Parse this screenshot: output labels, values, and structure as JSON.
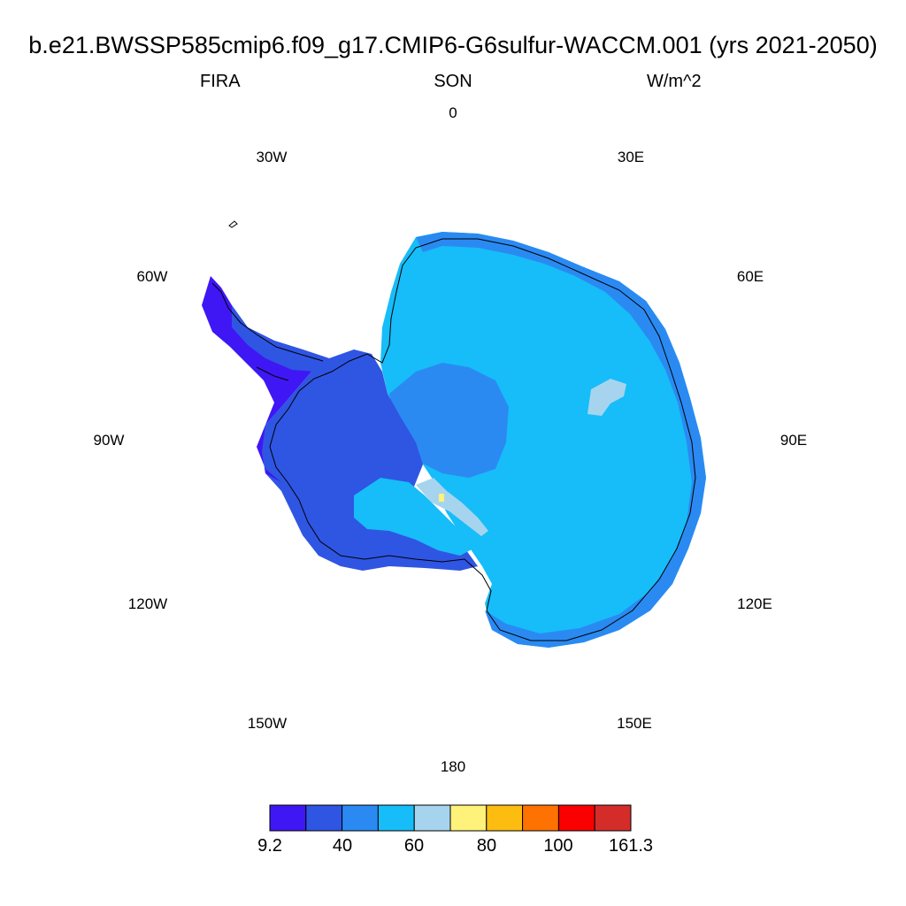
{
  "title": "b.e21.BWSSP585cmip6.f09_g17.CMIP6-G6sulfur-WACCM.001 (yrs 2021-2050)",
  "subtitle": {
    "left": "FIRA",
    "center": "SON",
    "right": "W/m^2"
  },
  "lon_labels": {
    "0": "0",
    "30E": "30E",
    "60E": "60E",
    "90E": "90E",
    "120E": "120E",
    "150E": "150E",
    "180": "180",
    "150W": "150W",
    "120W": "120W",
    "90W": "90W",
    "60W": "60W",
    "30W": "30W"
  },
  "colorbar": {
    "colors": [
      "#3f17f5",
      "#2f55e3",
      "#2a8af2",
      "#16bdf9",
      "#a6d4ef",
      "#fff27a",
      "#fdbc10",
      "#fd7200",
      "#fb0000",
      "#d42d29"
    ],
    "labels": [
      "9.2",
      "40",
      "60",
      "80",
      "100",
      "161.3"
    ]
  },
  "field_colors": {
    "deep_blue": "#3f17f5",
    "blue": "#2f55e3",
    "mid_blue": "#2a8af2",
    "cyan": "#16bdf9",
    "light_blue": "#a6d4ef",
    "yellow": "#fff27a"
  }
}
